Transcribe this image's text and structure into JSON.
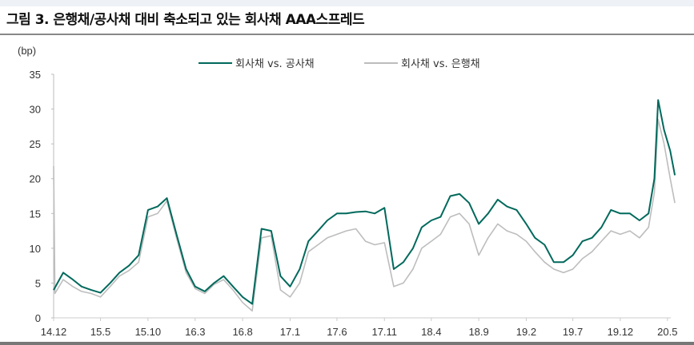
{
  "title": "그림 3. 은행채/공사채 대비 축소되고 있는 회사채 AAA스프레드",
  "chart_data": {
    "type": "line",
    "title": "",
    "ylabel": "(bp)",
    "xlabel": "",
    "ylim": [
      0,
      35
    ],
    "yticks": [
      0,
      5,
      10,
      15,
      20,
      25,
      30,
      35
    ],
    "xticks": [
      {
        "label": "14.12",
        "date": "2014-12-01"
      },
      {
        "label": "15.5",
        "date": "2015-05-01"
      },
      {
        "label": "15.10",
        "date": "2015-10-01"
      },
      {
        "label": "16.3",
        "date": "2016-03-01"
      },
      {
        "label": "16.8",
        "date": "2016-08-01"
      },
      {
        "label": "17.1",
        "date": "2017-01-01"
      },
      {
        "label": "17.6",
        "date": "2017-06-01"
      },
      {
        "label": "17.11",
        "date": "2017-11-01"
      },
      {
        "label": "18.4",
        "date": "2018-04-01"
      },
      {
        "label": "18.9",
        "date": "2018-09-01"
      },
      {
        "label": "19.2",
        "date": "2019-02-01"
      },
      {
        "label": "19.7",
        "date": "2019-07-01"
      },
      {
        "label": "19.12",
        "date": "2019-12-01"
      },
      {
        "label": "20.5",
        "date": "2020-05-01"
      }
    ],
    "grid": false,
    "legend_position": "top",
    "series": [
      {
        "name": "회사채 vs. 공사채",
        "color": "#00695c",
        "points": [
          [
            "2014-12-01",
            4
          ],
          [
            "2015-01-01",
            6.5
          ],
          [
            "2015-02-01",
            5.5
          ],
          [
            "2015-03-01",
            4.5
          ],
          [
            "2015-04-01",
            4
          ],
          [
            "2015-05-01",
            3.6
          ],
          [
            "2015-06-01",
            5
          ],
          [
            "2015-07-01",
            6.5
          ],
          [
            "2015-08-01",
            7.5
          ],
          [
            "2015-09-01",
            9
          ],
          [
            "2015-10-01",
            15.5
          ],
          [
            "2015-11-01",
            16
          ],
          [
            "2015-12-01",
            17.2
          ],
          [
            "2016-01-01",
            12
          ],
          [
            "2016-02-01",
            7
          ],
          [
            "2016-03-01",
            4.5
          ],
          [
            "2016-04-01",
            3.8
          ],
          [
            "2016-05-01",
            5
          ],
          [
            "2016-06-01",
            6
          ],
          [
            "2016-07-01",
            4.5
          ],
          [
            "2016-08-01",
            3
          ],
          [
            "2016-09-01",
            2
          ],
          [
            "2016-10-01",
            12.8
          ],
          [
            "2016-11-01",
            12.5
          ],
          [
            "2016-12-01",
            6
          ],
          [
            "2017-01-01",
            4.5
          ],
          [
            "2017-02-01",
            7
          ],
          [
            "2017-03-01",
            11
          ],
          [
            "2017-04-01",
            12.5
          ],
          [
            "2017-05-01",
            14
          ],
          [
            "2017-06-01",
            15
          ],
          [
            "2017-07-01",
            15
          ],
          [
            "2017-08-01",
            15.2
          ],
          [
            "2017-09-01",
            15.3
          ],
          [
            "2017-10-01",
            15
          ],
          [
            "2017-11-01",
            15.8
          ],
          [
            "2017-12-01",
            7
          ],
          [
            "2018-01-01",
            8
          ],
          [
            "2018-02-01",
            10
          ],
          [
            "2018-03-01",
            13
          ],
          [
            "2018-04-01",
            14
          ],
          [
            "2018-05-01",
            14.5
          ],
          [
            "2018-06-01",
            17.5
          ],
          [
            "2018-07-01",
            17.8
          ],
          [
            "2018-08-01",
            16.5
          ],
          [
            "2018-09-01",
            13.5
          ],
          [
            "2018-10-01",
            15
          ],
          [
            "2018-11-01",
            17
          ],
          [
            "2018-12-01",
            16
          ],
          [
            "2019-01-01",
            15.5
          ],
          [
            "2019-02-01",
            13.5
          ],
          [
            "2019-03-01",
            11.5
          ],
          [
            "2019-04-01",
            10.5
          ],
          [
            "2019-05-01",
            8
          ],
          [
            "2019-06-01",
            8
          ],
          [
            "2019-07-01",
            9
          ],
          [
            "2019-08-01",
            11
          ],
          [
            "2019-09-01",
            11.5
          ],
          [
            "2019-10-01",
            13
          ],
          [
            "2019-11-01",
            15.5
          ],
          [
            "2019-12-01",
            15
          ],
          [
            "2020-01-01",
            15
          ],
          [
            "2020-02-01",
            14
          ],
          [
            "2020-03-01",
            15
          ],
          [
            "2020-03-20",
            20
          ],
          [
            "2020-04-01",
            31.3
          ],
          [
            "2020-04-20",
            27
          ],
          [
            "2020-05-10",
            24
          ],
          [
            "2020-05-25",
            20.5
          ]
        ]
      },
      {
        "name": "회사채 vs. 은행채",
        "color": "#bdbdbd",
        "points": [
          [
            "2014-12-01",
            21.8
          ],
          [
            "2014-12-05",
            3.5
          ],
          [
            "2015-01-01",
            5.5
          ],
          [
            "2015-02-01",
            4.5
          ],
          [
            "2015-03-01",
            3.8
          ],
          [
            "2015-04-01",
            3.5
          ],
          [
            "2015-05-01",
            3
          ],
          [
            "2015-06-01",
            4.5
          ],
          [
            "2015-07-01",
            6
          ],
          [
            "2015-08-01",
            6.8
          ],
          [
            "2015-09-01",
            8
          ],
          [
            "2015-10-01",
            14.5
          ],
          [
            "2015-11-01",
            15
          ],
          [
            "2015-12-01",
            16.8
          ],
          [
            "2016-01-01",
            11.5
          ],
          [
            "2016-02-01",
            6.5
          ],
          [
            "2016-03-01",
            4.2
          ],
          [
            "2016-04-01",
            3.5
          ],
          [
            "2016-05-01",
            4.8
          ],
          [
            "2016-06-01",
            5.5
          ],
          [
            "2016-07-01",
            4
          ],
          [
            "2016-08-01",
            2.2
          ],
          [
            "2016-09-01",
            1
          ],
          [
            "2016-10-01",
            11.5
          ],
          [
            "2016-11-01",
            11.8
          ],
          [
            "2016-12-01",
            4
          ],
          [
            "2017-01-01",
            3
          ],
          [
            "2017-02-01",
            5
          ],
          [
            "2017-03-01",
            9.5
          ],
          [
            "2017-04-01",
            10.5
          ],
          [
            "2017-05-01",
            11.5
          ],
          [
            "2017-06-01",
            12
          ],
          [
            "2017-07-01",
            12.5
          ],
          [
            "2017-08-01",
            12.8
          ],
          [
            "2017-09-01",
            11
          ],
          [
            "2017-10-01",
            10.5
          ],
          [
            "2017-11-01",
            10.8
          ],
          [
            "2017-12-01",
            4.5
          ],
          [
            "2018-01-01",
            5
          ],
          [
            "2018-02-01",
            7
          ],
          [
            "2018-03-01",
            10
          ],
          [
            "2018-04-01",
            11
          ],
          [
            "2018-05-01",
            12
          ],
          [
            "2018-06-01",
            14.5
          ],
          [
            "2018-07-01",
            15
          ],
          [
            "2018-08-01",
            13.5
          ],
          [
            "2018-09-01",
            9
          ],
          [
            "2018-10-01",
            11.5
          ],
          [
            "2018-11-01",
            13.5
          ],
          [
            "2018-12-01",
            12.5
          ],
          [
            "2019-01-01",
            12
          ],
          [
            "2019-02-01",
            11
          ],
          [
            "2019-03-01",
            9.5
          ],
          [
            "2019-04-01",
            8
          ],
          [
            "2019-05-01",
            7
          ],
          [
            "2019-06-01",
            6.5
          ],
          [
            "2019-07-01",
            7
          ],
          [
            "2019-08-01",
            8.5
          ],
          [
            "2019-09-01",
            9.5
          ],
          [
            "2019-10-01",
            11
          ],
          [
            "2019-11-01",
            12.5
          ],
          [
            "2019-12-01",
            12
          ],
          [
            "2020-01-01",
            12.5
          ],
          [
            "2020-02-01",
            11.5
          ],
          [
            "2020-03-01",
            13
          ],
          [
            "2020-03-20",
            18
          ],
          [
            "2020-04-01",
            28.5
          ],
          [
            "2020-04-20",
            25
          ],
          [
            "2020-05-10",
            20
          ],
          [
            "2020-05-25",
            16.5
          ]
        ]
      }
    ]
  }
}
